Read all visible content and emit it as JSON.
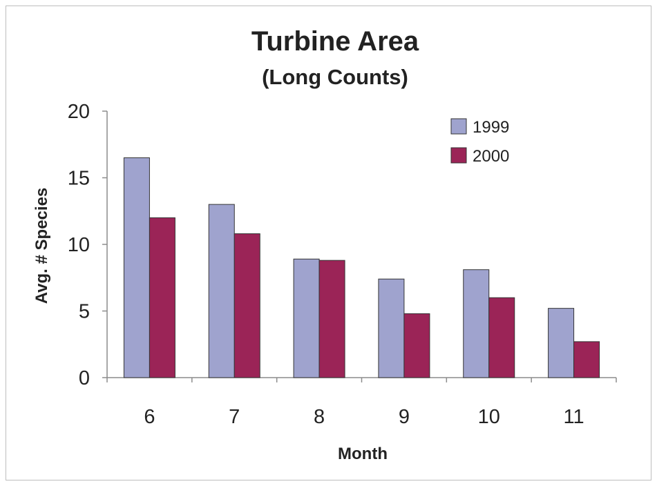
{
  "chart_data": {
    "type": "bar",
    "title": "Turbine Area",
    "subtitle": "(Long Counts)",
    "xlabel": "Month",
    "ylabel": "Avg. # Species",
    "categories": [
      "6",
      "7",
      "8",
      "9",
      "10",
      "11"
    ],
    "series": [
      {
        "name": "1999",
        "color": "#9fa3ce",
        "values": [
          16.5,
          13.0,
          8.9,
          7.4,
          8.1,
          5.2
        ]
      },
      {
        "name": "2000",
        "color": "#9b2457",
        "values": [
          12.0,
          10.8,
          8.8,
          4.8,
          6.0,
          2.7
        ]
      }
    ],
    "ylim": [
      0,
      20
    ],
    "yticks": [
      "0",
      "5",
      "10",
      "15",
      "20"
    ],
    "grid": false,
    "legend_position": "top-right"
  }
}
